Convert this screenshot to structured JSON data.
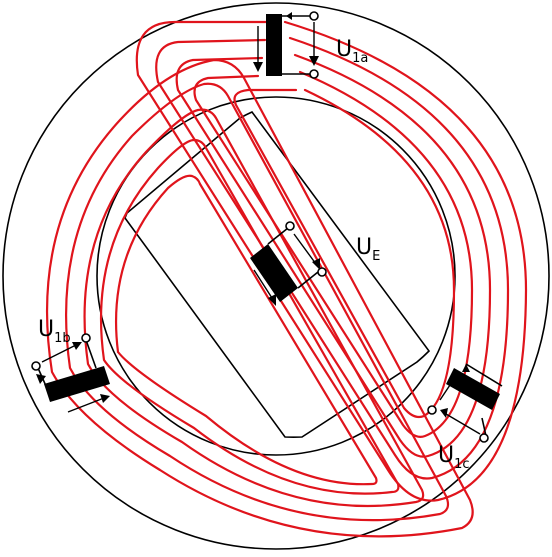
{
  "colors": {
    "conductor": "#e0141c",
    "outline": "#000000",
    "background": "#ffffff"
  },
  "labels": {
    "u1a": {
      "main": "U",
      "sub": "1a"
    },
    "u1b": {
      "main": "U",
      "sub": "1b"
    },
    "u1c": {
      "main": "U",
      "sub": "1c"
    },
    "ue": {
      "main": "U",
      "sub": "E"
    }
  }
}
